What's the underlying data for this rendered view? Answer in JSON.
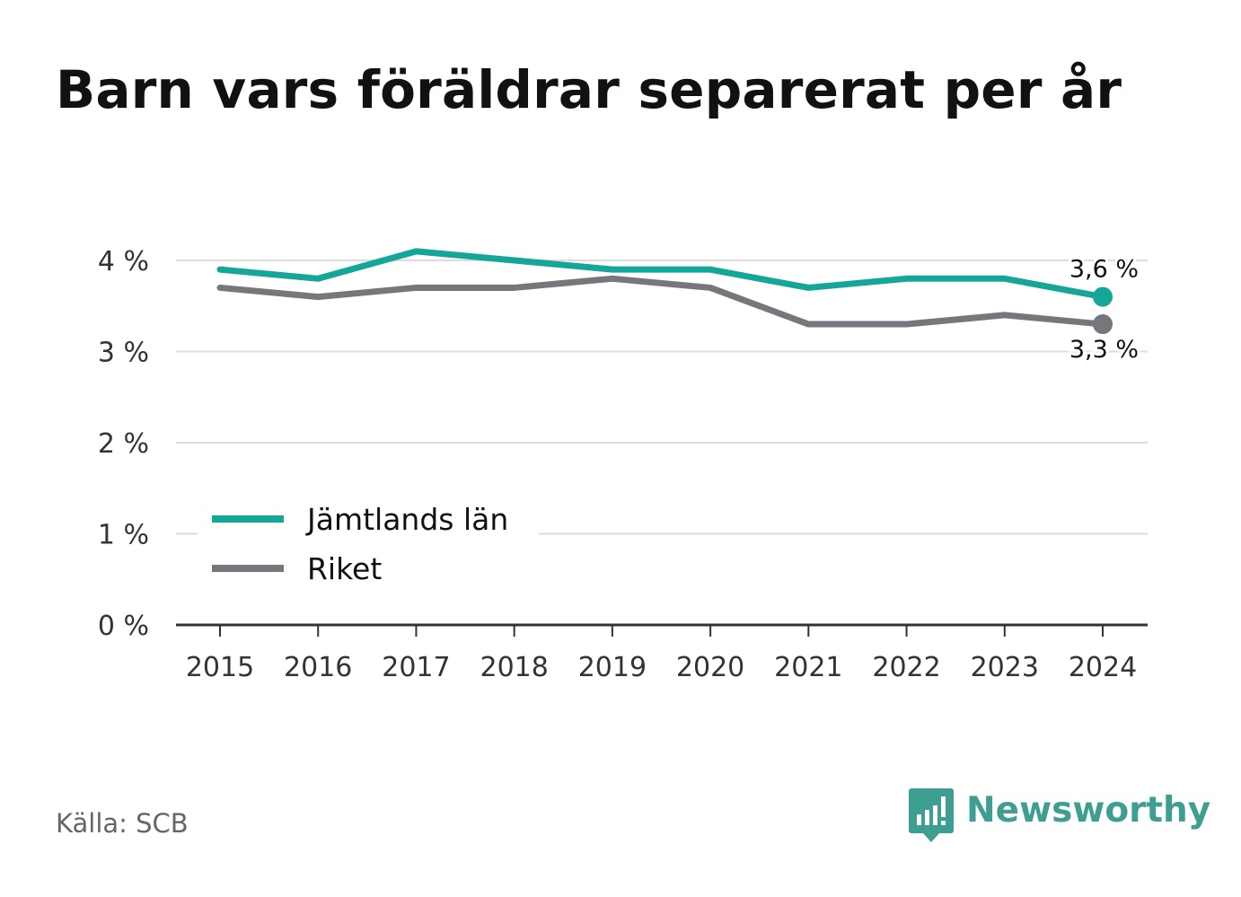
{
  "title": "Barn vars föräldrar separerat per år",
  "source": "Källa: SCB",
  "brand": {
    "name": "Newsworthy",
    "icon": "newsworthy-logo-icon",
    "color": "#3e9e91"
  },
  "chart_data": {
    "type": "line",
    "title": "Barn vars föräldrar separerat per år",
    "xlabel": "",
    "ylabel": "",
    "x": [
      "2015",
      "2016",
      "2017",
      "2018",
      "2019",
      "2020",
      "2021",
      "2022",
      "2023",
      "2024"
    ],
    "ylim": [
      0,
      4
    ],
    "yticks": [
      0,
      1,
      2,
      3,
      4
    ],
    "ytick_labels": [
      "0 %",
      "1 %",
      "2 %",
      "3 %",
      "4 %"
    ],
    "grid": true,
    "legend": "bottom-left",
    "series": [
      {
        "name": "Jämtlands län",
        "color": "#14a697",
        "values": [
          3.9,
          3.8,
          4.1,
          4.0,
          3.9,
          3.9,
          3.7,
          3.8,
          3.8,
          3.6
        ],
        "end_label": "3,6 %"
      },
      {
        "name": "Riket",
        "color": "#76767c",
        "values": [
          3.7,
          3.6,
          3.7,
          3.7,
          3.8,
          3.7,
          3.3,
          3.3,
          3.4,
          3.3
        ],
        "end_label": "3,3 %"
      }
    ]
  }
}
